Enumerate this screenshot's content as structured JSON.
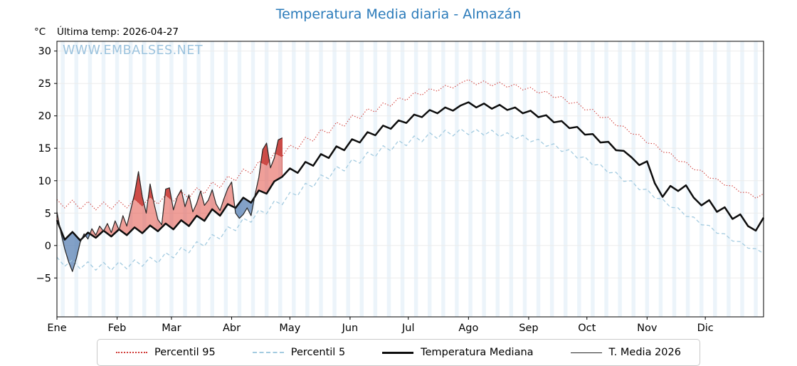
{
  "page": {
    "title": "Temperatura Media diaria - Almazán",
    "title_color": "#2b7bba",
    "unit_label": "°C",
    "last_temp_label": "Última temp: 2026-04-27",
    "watermark": "WWW.EMBALSES.NET",
    "watermark_color": "#9cc3de"
  },
  "legend": {
    "items": [
      {
        "label": "Percentil 95",
        "style": "dotted",
        "color": "#d03a36"
      },
      {
        "label": "Percentil 5",
        "style": "dashed",
        "color": "#a3cbe0"
      },
      {
        "label": "Temperatura Mediana",
        "style": "solid-thick",
        "color": "#0d0d0d"
      },
      {
        "label": "T. Media 2026",
        "style": "solid-thin",
        "color": "#262626"
      }
    ]
  },
  "chart_data": {
    "type": "line",
    "title": "Temperatura Media diaria - Almazán",
    "ylabel": "°C",
    "annotation": "Última temp: 2026-04-27",
    "ylim": [
      -11,
      31.5
    ],
    "y_ticks": [
      -5,
      0,
      5,
      10,
      15,
      20,
      25,
      30
    ],
    "x_unit": "day_of_year",
    "x_range_days": [
      1,
      365
    ],
    "x_months": {
      "labels": [
        "Ene",
        "Feb",
        "Mar",
        "Abr",
        "May",
        "Jun",
        "Jul",
        "Ago",
        "Sep",
        "Oct",
        "Nov",
        "Dic"
      ],
      "start_days": [
        1,
        32,
        60,
        91,
        121,
        152,
        182,
        213,
        244,
        274,
        305,
        335
      ]
    },
    "grid_color": "#ebebeb",
    "weekend_band_color": "#dcebf6",
    "fills": {
      "compare_series": "T. Media 2026",
      "baseline_series": "Temperatura Mediana",
      "upper_series": "Percentil 95",
      "above_median_color": "rgba(225,80,70,0.55)",
      "below_median_color": "rgba(90,130,180,0.75)",
      "above_p95_color": "rgba(187,32,28,0.65)",
      "pos_edge": "#c43d38",
      "neg_edge": "#5a7fae"
    },
    "series": [
      {
        "name": "Percentil 95",
        "color": "#d03a36",
        "line": "dotted",
        "width": 1.1,
        "x": [
          1,
          5,
          9,
          13,
          17,
          21,
          25,
          29,
          33,
          37,
          41,
          45,
          49,
          53,
          57,
          61,
          65,
          69,
          73,
          77,
          81,
          85,
          89,
          93,
          97,
          101,
          105,
          109,
          113,
          117,
          121,
          125,
          129,
          133,
          137,
          141,
          145,
          149,
          153,
          157,
          161,
          165,
          169,
          173,
          177,
          181,
          185,
          189,
          193,
          197,
          201,
          205,
          209,
          213,
          217,
          221,
          225,
          229,
          233,
          237,
          241,
          245,
          249,
          253,
          257,
          261,
          265,
          269,
          273,
          277,
          281,
          285,
          289,
          293,
          297,
          301,
          305,
          309,
          313,
          317,
          321,
          325,
          329,
          333,
          337,
          341,
          345,
          349,
          353,
          357,
          361,
          365
        ],
        "y": [
          7.1,
          5.8,
          7.0,
          5.6,
          6.8,
          5.5,
          6.7,
          5.6,
          6.9,
          5.8,
          7.2,
          6.1,
          7.5,
          6.4,
          7.8,
          6.8,
          8.3,
          7.3,
          8.9,
          8.0,
          9.8,
          8.9,
          10.7,
          10.0,
          11.8,
          11.1,
          13.0,
          12.4,
          14.3,
          13.7,
          15.5,
          14.9,
          16.7,
          16.1,
          17.9,
          17.3,
          19.0,
          18.4,
          20.1,
          19.6,
          21.1,
          20.6,
          22.0,
          21.5,
          22.8,
          22.4,
          23.6,
          23.2,
          24.2,
          23.8,
          24.7,
          24.3,
          25.1,
          25.6,
          24.8,
          25.4,
          24.6,
          25.2,
          24.4,
          24.9,
          24.0,
          24.4,
          23.5,
          23.8,
          22.8,
          23.0,
          21.9,
          22.1,
          20.9,
          21.0,
          19.7,
          19.8,
          18.5,
          18.4,
          17.2,
          17.1,
          15.8,
          15.7,
          14.4,
          14.3,
          13.0,
          12.9,
          11.7,
          11.6,
          10.4,
          10.3,
          9.3,
          9.2,
          8.2,
          8.2,
          7.3,
          8.0
        ]
      },
      {
        "name": "Percentil 5",
        "color": "#a3cbe0",
        "line": "dashed",
        "width": 1.3,
        "x": [
          1,
          5,
          9,
          13,
          17,
          21,
          25,
          29,
          33,
          37,
          41,
          45,
          49,
          53,
          57,
          61,
          65,
          69,
          73,
          77,
          81,
          85,
          89,
          93,
          97,
          101,
          105,
          109,
          113,
          117,
          121,
          125,
          129,
          133,
          137,
          141,
          145,
          149,
          153,
          157,
          161,
          165,
          169,
          173,
          177,
          181,
          185,
          189,
          193,
          197,
          201,
          205,
          209,
          213,
          217,
          221,
          225,
          229,
          233,
          237,
          241,
          245,
          249,
          253,
          257,
          261,
          265,
          269,
          273,
          277,
          281,
          285,
          289,
          293,
          297,
          301,
          305,
          309,
          313,
          317,
          321,
          325,
          329,
          333,
          337,
          341,
          345,
          349,
          353,
          357,
          361,
          365
        ],
        "y": [
          -1.8,
          -3.2,
          -2.2,
          -3.6,
          -2.5,
          -3.8,
          -2.6,
          -3.8,
          -2.5,
          -3.6,
          -2.2,
          -3.2,
          -1.8,
          -2.7,
          -1.1,
          -1.9,
          -0.3,
          -1.1,
          0.6,
          -0.1,
          1.7,
          1.0,
          2.9,
          2.3,
          4.2,
          3.6,
          5.5,
          4.9,
          6.9,
          6.3,
          8.2,
          7.7,
          9.6,
          9.0,
          10.9,
          10.3,
          12.2,
          11.5,
          13.3,
          12.7,
          14.4,
          13.7,
          15.4,
          14.6,
          16.2,
          15.4,
          16.9,
          16.0,
          17.4,
          16.5,
          17.8,
          16.9,
          18.0,
          17.1,
          17.9,
          17.0,
          17.8,
          16.8,
          17.4,
          16.4,
          17.0,
          16.0,
          16.4,
          15.3,
          15.7,
          14.5,
          14.8,
          13.5,
          13.7,
          12.4,
          12.5,
          11.2,
          11.3,
          9.9,
          10.0,
          8.6,
          8.7,
          7.3,
          7.2,
          5.9,
          5.8,
          4.5,
          4.4,
          3.2,
          3.1,
          1.9,
          1.8,
          0.7,
          0.6,
          -0.4,
          -0.5,
          -1.2
        ]
      },
      {
        "name": "Temperatura Mediana",
        "color": "#0d0d0d",
        "line": "solid",
        "width": 2.5,
        "x": [
          1,
          5,
          9,
          13,
          17,
          21,
          25,
          29,
          33,
          37,
          41,
          45,
          49,
          53,
          57,
          61,
          65,
          69,
          73,
          77,
          81,
          85,
          89,
          93,
          97,
          101,
          105,
          109,
          113,
          117,
          121,
          125,
          129,
          133,
          137,
          141,
          145,
          149,
          153,
          157,
          161,
          165,
          169,
          173,
          177,
          181,
          185,
          189,
          193,
          197,
          201,
          205,
          209,
          213,
          217,
          221,
          225,
          229,
          233,
          237,
          241,
          245,
          249,
          253,
          257,
          261,
          265,
          269,
          273,
          277,
          281,
          285,
          289,
          293,
          297,
          301,
          305,
          309,
          313,
          317,
          321,
          325,
          329,
          333,
          337,
          341,
          345,
          349,
          353,
          357,
          361,
          365
        ],
        "y": [
          3.9,
          0.9,
          2.1,
          0.8,
          2.0,
          1.2,
          2.3,
          1.4,
          2.5,
          1.6,
          2.8,
          1.9,
          3.1,
          2.2,
          3.4,
          2.5,
          3.9,
          3.0,
          4.6,
          3.8,
          5.6,
          4.6,
          6.4,
          5.8,
          7.4,
          6.6,
          8.5,
          8.0,
          9.9,
          10.6,
          11.9,
          11.2,
          12.9,
          12.3,
          14.1,
          13.5,
          15.3,
          14.7,
          16.4,
          15.9,
          17.5,
          17.0,
          18.5,
          18.0,
          19.3,
          18.9,
          20.2,
          19.8,
          20.9,
          20.4,
          21.3,
          20.8,
          21.6,
          22.1,
          21.3,
          21.9,
          21.1,
          21.7,
          20.9,
          21.3,
          20.4,
          20.8,
          19.8,
          20.1,
          19.0,
          19.2,
          18.1,
          18.3,
          17.1,
          17.2,
          15.9,
          16.0,
          14.7,
          14.6,
          13.6,
          12.4,
          13.0,
          9.6,
          7.5,
          9.2,
          8.4,
          9.3,
          7.4,
          6.2,
          7.0,
          5.2,
          5.9,
          4.1,
          4.8,
          3.0,
          2.3,
          4.3
        ]
      },
      {
        "name": "T. Media 2026",
        "color": "#262626",
        "line": "solid",
        "width": 1.2,
        "x": [
          1,
          3,
          5,
          7,
          9,
          11,
          13,
          15,
          17,
          19,
          21,
          23,
          25,
          27,
          29,
          31,
          33,
          35,
          37,
          39,
          41,
          43,
          45,
          47,
          49,
          51,
          53,
          55,
          57,
          59,
          61,
          63,
          65,
          67,
          69,
          71,
          73,
          75,
          77,
          79,
          81,
          83,
          85,
          87,
          89,
          91,
          93,
          95,
          97,
          99,
          101,
          103,
          105,
          107,
          109,
          111,
          113,
          115,
          117
        ],
        "y": [
          5.2,
          2.0,
          -0.5,
          -2.5,
          -4.0,
          -2.0,
          0.5,
          1.8,
          1.0,
          2.6,
          1.6,
          3.0,
          2.2,
          3.4,
          2.0,
          3.8,
          2.4,
          4.6,
          3.0,
          5.5,
          8.0,
          11.4,
          7.5,
          5.0,
          9.5,
          6.5,
          4.0,
          3.2,
          8.7,
          8.9,
          5.5,
          7.5,
          8.6,
          6.0,
          7.8,
          5.2,
          6.5,
          8.4,
          6.2,
          7.0,
          8.6,
          6.4,
          5.4,
          7.2,
          8.8,
          9.8,
          5.0,
          4.2,
          4.8,
          5.8,
          4.6,
          7.8,
          10.5,
          14.8,
          15.8,
          12.0,
          13.5,
          16.3,
          16.6
        ]
      }
    ]
  }
}
